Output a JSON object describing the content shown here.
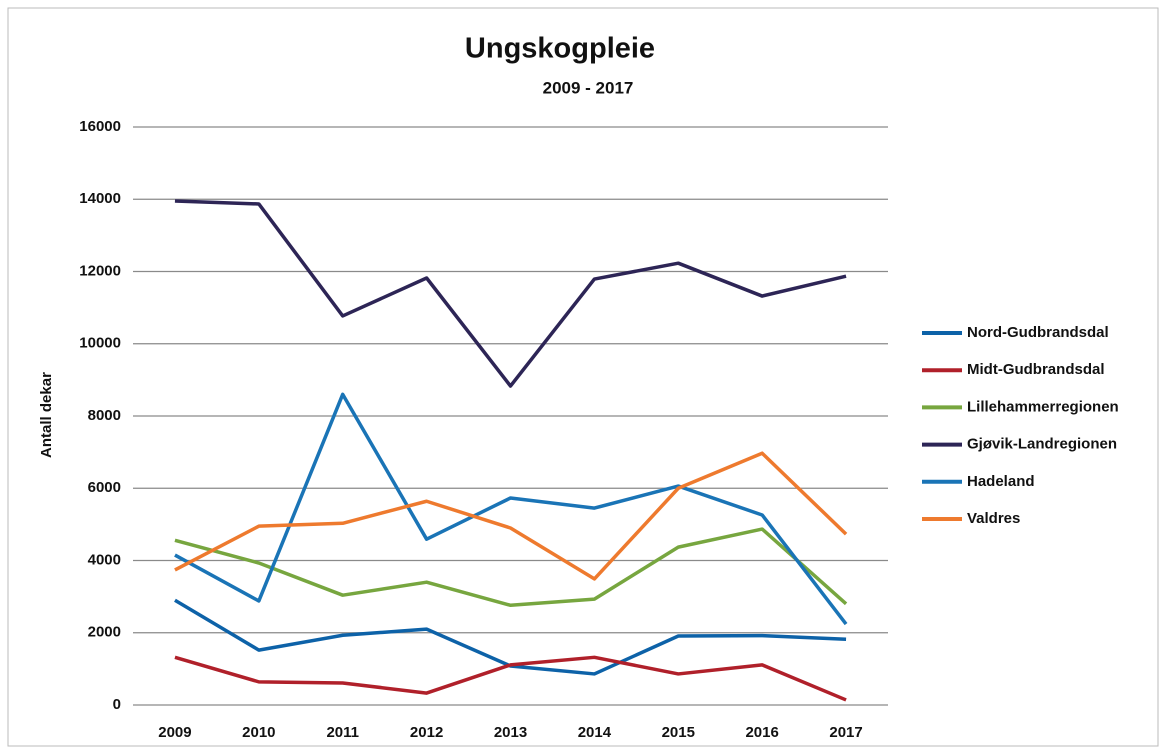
{
  "chart_data": {
    "type": "line",
    "title": "Ungskogpleie",
    "subtitle": "2009 - 2017",
    "y_label": "Antall dekar",
    "categories": [
      "2009",
      "2010",
      "2011",
      "2012",
      "2013",
      "2014",
      "2015",
      "2016",
      "2017"
    ],
    "series": [
      {
        "name": "Nord-Gudbrandsdal",
        "color": "#0d62a8",
        "values": [
          2900,
          1520,
          1930,
          2100,
          1080,
          860,
          1910,
          1920,
          1820
        ]
      },
      {
        "name": "Midt-Gudbrandsdal",
        "color": "#b0202a",
        "values": [
          1320,
          640,
          610,
          330,
          1110,
          1320,
          860,
          1110,
          140
        ]
      },
      {
        "name": "Lillehammerregionen",
        "color": "#77a63f",
        "values": [
          4560,
          3930,
          3040,
          3400,
          2760,
          2930,
          4370,
          4870,
          2800
        ]
      },
      {
        "name": "Gjøvik-Landregionen",
        "color": "#2d2556",
        "values": [
          13950,
          13870,
          10770,
          11820,
          8830,
          11790,
          12230,
          11320,
          11870
        ]
      },
      {
        "name": "Hadeland",
        "color": "#1a74b6",
        "values": [
          4150,
          2880,
          8600,
          4590,
          5730,
          5450,
          6060,
          5260,
          2240
        ]
      },
      {
        "name": "Valdres",
        "color": "#ee7a2e",
        "values": [
          3740,
          4950,
          5030,
          5640,
          4900,
          3490,
          6000,
          6970,
          4730
        ]
      }
    ],
    "ylim": [
      0,
      16000
    ],
    "yticks": [
      0,
      2000,
      4000,
      6000,
      8000,
      10000,
      12000,
      14000,
      16000
    ],
    "grid": true,
    "legend": "right"
  }
}
